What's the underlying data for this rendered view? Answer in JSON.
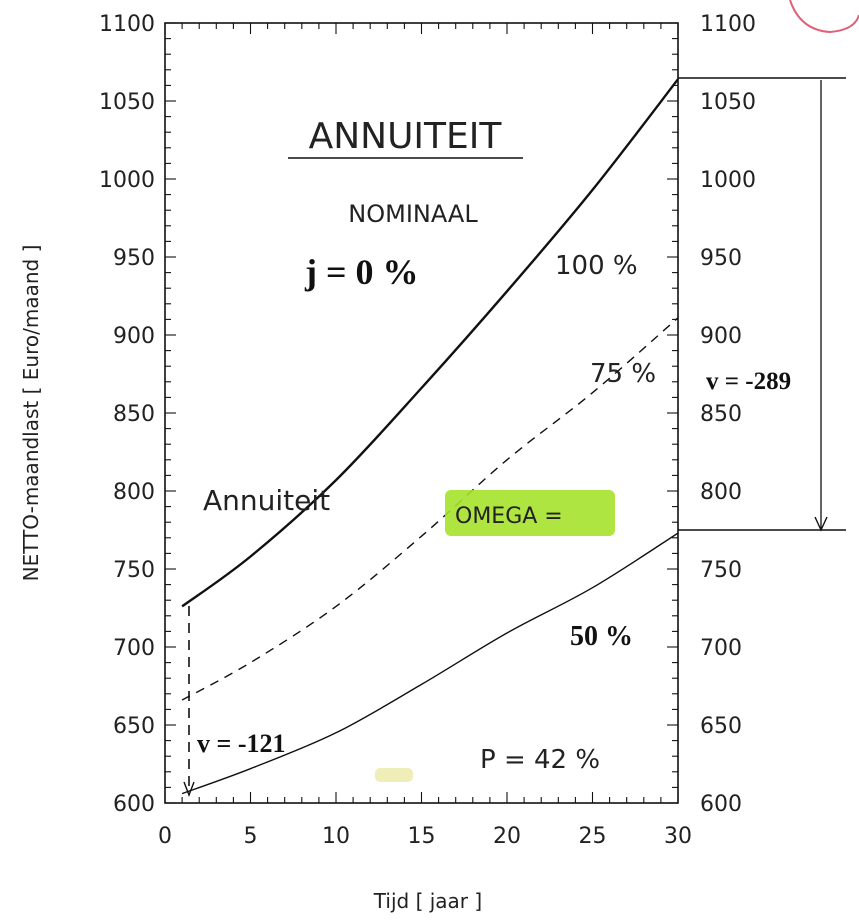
{
  "chart_data": {
    "type": "line",
    "title": "ANNUITEIT",
    "subtitle": "NOMINAAL",
    "xlabel": "Tijd [ jaar ]",
    "ylabel": "NETTO-maandlast [ Euro/maand ]",
    "xlim": [
      0,
      30
    ],
    "ylim": [
      600,
      1100
    ],
    "x_ticks": [
      0,
      5,
      10,
      15,
      20,
      25,
      30
    ],
    "y_ticks": [
      600,
      650,
      700,
      750,
      800,
      850,
      900,
      950,
      1000,
      1050,
      1100
    ],
    "x_tick_labels": [
      "0",
      "5",
      "10",
      "15",
      "20",
      "25",
      "30"
    ],
    "y_tick_labels": [
      "600",
      "650",
      "700",
      "750",
      "800",
      "850",
      "900",
      "950",
      "1000",
      "1050",
      "1100"
    ],
    "grid": false,
    "series": [
      {
        "name": "100 %",
        "style": "solid-thick",
        "x": [
          1,
          5,
          10,
          15,
          20,
          25,
          30
        ],
        "y": [
          726,
          758,
          807,
          866,
          928,
          993,
          1064
        ]
      },
      {
        "name": "75 %",
        "style": "dashed",
        "x": [
          1,
          5,
          10,
          15,
          20,
          25,
          30
        ],
        "y": [
          666,
          690,
          726,
          771,
          820,
          863,
          911
        ]
      },
      {
        "name": "50 %",
        "style": "solid-thin",
        "x": [
          1,
          5,
          10,
          15,
          20,
          25,
          30
        ],
        "y": [
          606,
          622,
          645,
          676,
          709,
          738,
          773
        ]
      }
    ],
    "annotations": {
      "j": "j  =  0  %",
      "label_100": "100  %",
      "label_75": "75  %",
      "label_50": "50  %",
      "annuiteit": "Annuiteit",
      "omega": "OMEGA  =",
      "p": "P  =  42  %",
      "v_left": "v  =  -121",
      "v_right": "v  =  -289"
    },
    "highlight_color": "#a6e22b",
    "line_color": "#111111"
  }
}
